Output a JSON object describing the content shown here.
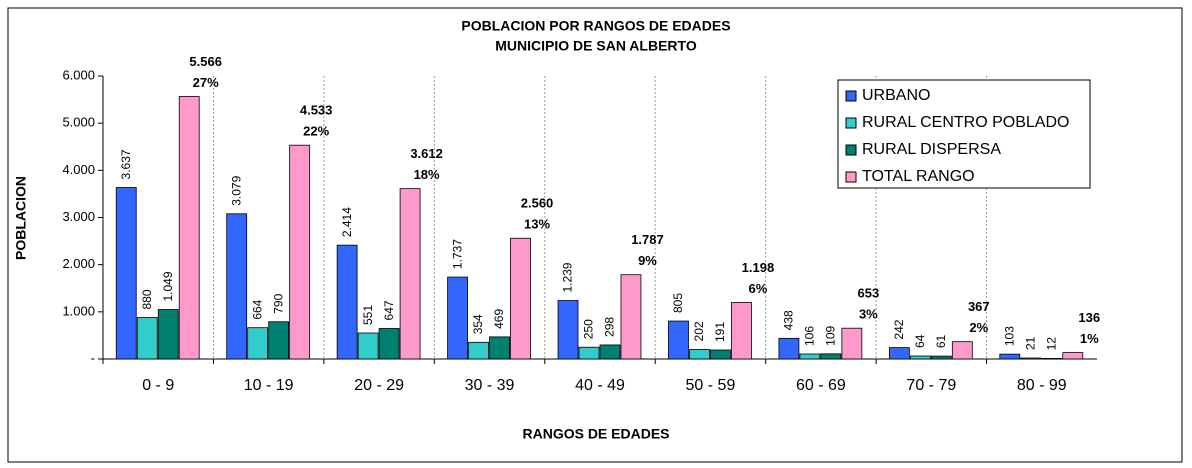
{
  "chart_data": {
    "type": "bar",
    "title": "POBLACION POR RANGOS DE EDADES",
    "subtitle": "MUNICIPIO DE SAN ALBERTO",
    "x_label": "RANGOS DE EDADES",
    "y_label": "POBLACION",
    "categories": [
      "0 - 9",
      "10 - 19",
      "20 - 29",
      "30 - 39",
      "40 - 49",
      "50 - 59",
      "60 - 69",
      "70 - 79",
      "80 - 99"
    ],
    "series": [
      {
        "name": "URBANO",
        "color": "#3366ff",
        "values": [
          3637,
          3079,
          2414,
          1737,
          1239,
          805,
          438,
          242,
          103
        ],
        "value_labels": [
          "3.637",
          "3.079",
          "2.414",
          "1.737",
          "1.239",
          "805",
          "438",
          "242",
          "103"
        ]
      },
      {
        "name": "RURAL CENTRO POBLADO",
        "color": "#33cccc",
        "values": [
          880,
          664,
          551,
          354,
          250,
          202,
          106,
          64,
          21
        ],
        "value_labels": [
          "880",
          "664",
          "551",
          "354",
          "250",
          "202",
          "106",
          "64",
          "21"
        ]
      },
      {
        "name": "RURAL DISPERSA",
        "color": "#008070",
        "values": [
          1049,
          790,
          647,
          469,
          298,
          191,
          109,
          61,
          12
        ],
        "value_labels": [
          "1.049",
          "790",
          "647",
          "469",
          "298",
          "191",
          "109",
          "61",
          "12"
        ]
      },
      {
        "name": "TOTAL RANGO",
        "color": "#ff99cc",
        "values": [
          5566,
          4533,
          3612,
          2560,
          1787,
          1198,
          653,
          367,
          136
        ],
        "value_labels": [
          "5.566",
          "4.533",
          "3.612",
          "2.560",
          "1.787",
          "1.198",
          "653",
          "367",
          "136"
        ],
        "share_labels": [
          "27%",
          "22%",
          "18%",
          "13%",
          "9%",
          "6%",
          "3%",
          "2%",
          "1%"
        ]
      }
    ],
    "ylim": [
      0,
      6000
    ],
    "yticks": [
      {
        "value": 0,
        "label": "-"
      },
      {
        "value": 1000,
        "label": "1.000"
      },
      {
        "value": 2000,
        "label": "2.000"
      },
      {
        "value": 3000,
        "label": "3.000"
      },
      {
        "value": 4000,
        "label": "4.000"
      },
      {
        "value": 5000,
        "label": "5.000"
      },
      {
        "value": 6000,
        "label": "6.000"
      }
    ],
    "legend": "upper right"
  }
}
